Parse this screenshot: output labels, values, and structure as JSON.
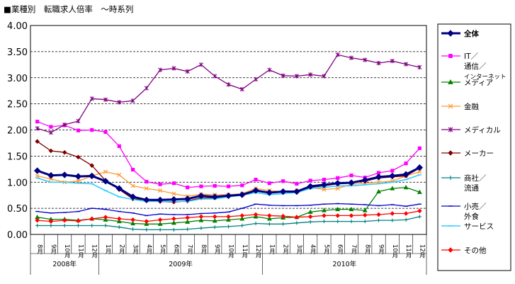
{
  "chart_data": {
    "type": "line",
    "title": "■業種別　転職求人倍率　～時系列",
    "xlabel": "",
    "ylabel": "",
    "ylim": [
      0,
      4
    ],
    "yticks": [
      "0.00",
      "0.50",
      "1.00",
      "1.50",
      "2.00",
      "2.50",
      "3.00",
      "3.50",
      "4.00"
    ],
    "grid": true,
    "legend_position": "right",
    "x_labels": [
      "8月",
      "9月",
      "10月",
      "11月",
      "12月",
      "1月",
      "2月",
      "3月",
      "4月",
      "5月",
      "6月",
      "7月",
      "8月",
      "9月",
      "10月",
      "11月",
      "12月",
      "1月",
      "2月",
      "3月",
      "4月",
      "5月",
      "6月",
      "7月",
      "8月",
      "9月",
      "10月",
      "11月",
      "12月"
    ],
    "year_labels": [
      {
        "label": "2008年",
        "start": 0,
        "end": 4
      },
      {
        "label": "2009年",
        "start": 5,
        "end": 16
      },
      {
        "label": "2010年",
        "start": 17,
        "end": 28
      }
    ],
    "series": [
      {
        "name": "全体",
        "color": "#000080",
        "marker": "diamond",
        "width": 3,
        "values": [
          1.22,
          1.13,
          1.14,
          1.11,
          1.12,
          1.02,
          0.88,
          0.72,
          0.66,
          0.66,
          0.67,
          0.68,
          0.74,
          0.72,
          0.74,
          0.76,
          0.84,
          0.8,
          0.82,
          0.82,
          0.92,
          0.95,
          0.98,
          0.99,
          1.04,
          1.1,
          1.12,
          1.15,
          1.28
        ]
      },
      {
        "name": "IT／通信／インターネット",
        "color": "#ff00ff",
        "marker": "square",
        "width": 1.3,
        "values": [
          2.16,
          2.06,
          2.09,
          1.99,
          2.0,
          1.96,
          1.69,
          1.24,
          1.01,
          0.96,
          0.98,
          0.9,
          0.92,
          0.93,
          0.92,
          0.94,
          1.05,
          0.98,
          1.02,
          0.97,
          1.03,
          1.05,
          1.08,
          1.13,
          1.09,
          1.18,
          1.22,
          1.36,
          1.65
        ]
      },
      {
        "name": "メディア",
        "color": "#008000",
        "marker": "triangle",
        "width": 1.3,
        "values": [
          0.33,
          0.29,
          0.29,
          0.27,
          0.3,
          0.28,
          0.25,
          0.21,
          0.2,
          0.2,
          0.22,
          0.24,
          0.27,
          0.26,
          0.28,
          0.3,
          0.34,
          0.3,
          0.32,
          0.33,
          0.43,
          0.46,
          0.48,
          0.48,
          0.46,
          0.82,
          0.88,
          0.9,
          0.81
        ]
      },
      {
        "name": "金融",
        "color": "#ff9933",
        "marker": "x",
        "width": 1.3,
        "values": [
          1.12,
          1.06,
          1.0,
          1.02,
          1.12,
          1.2,
          1.14,
          0.93,
          0.88,
          0.84,
          0.78,
          0.73,
          0.77,
          0.76,
          0.76,
          0.78,
          0.88,
          0.84,
          0.82,
          0.84,
          0.9,
          0.86,
          0.88,
          0.96,
          0.98,
          1.0,
          1.02,
          1.12,
          1.2
        ]
      },
      {
        "name": "メディカル",
        "color": "#800080",
        "marker": "star",
        "width": 1.3,
        "values": [
          2.03,
          1.95,
          2.1,
          2.17,
          2.6,
          2.58,
          2.53,
          2.56,
          2.8,
          3.15,
          3.18,
          3.12,
          3.25,
          3.03,
          2.87,
          2.78,
          2.97,
          3.15,
          3.04,
          3.03,
          3.06,
          3.03,
          3.44,
          3.38,
          3.34,
          3.28,
          3.32,
          3.26,
          3.2
        ]
      },
      {
        "name": "メーカー",
        "color": "#800000",
        "marker": "diamond",
        "width": 1.3,
        "values": [
          1.78,
          1.6,
          1.57,
          1.48,
          1.32,
          1.03,
          0.86,
          0.68,
          0.66,
          0.63,
          0.62,
          0.64,
          0.7,
          0.7,
          0.73,
          0.75,
          0.86,
          0.79,
          0.81,
          0.82,
          0.9,
          0.93,
          0.97,
          0.99,
          1.02,
          1.08,
          1.1,
          1.12,
          1.27
        ]
      },
      {
        "name": "商社／流通",
        "color": "#008080",
        "marker": "plus",
        "width": 1.3,
        "values": [
          0.17,
          0.17,
          0.17,
          0.17,
          0.17,
          0.17,
          0.14,
          0.1,
          0.09,
          0.09,
          0.09,
          0.1,
          0.12,
          0.14,
          0.15,
          0.17,
          0.21,
          0.2,
          0.2,
          0.22,
          0.24,
          0.25,
          0.25,
          0.25,
          0.25,
          0.27,
          0.27,
          0.28,
          0.34
        ]
      },
      {
        "name": "小売／外食",
        "color": "#0000cc",
        "marker": "dash",
        "width": 1.3,
        "values": [
          0.44,
          0.41,
          0.42,
          0.44,
          0.5,
          0.48,
          0.44,
          0.41,
          0.36,
          0.39,
          0.38,
          0.38,
          0.4,
          0.41,
          0.43,
          0.5,
          0.58,
          0.56,
          0.55,
          0.55,
          0.56,
          0.58,
          0.59,
          0.58,
          0.57,
          0.55,
          0.57,
          0.54,
          0.58
        ]
      },
      {
        "name": "サービス",
        "color": "#33ccff",
        "marker": "dash",
        "width": 1.6,
        "values": [
          1.08,
          1.0,
          1.0,
          0.98,
          0.97,
          0.84,
          0.72,
          0.67,
          0.63,
          0.63,
          0.63,
          0.63,
          0.68,
          0.68,
          0.72,
          0.75,
          0.8,
          0.76,
          0.78,
          0.8,
          0.88,
          0.9,
          0.93,
          0.93,
          0.95,
          0.97,
          1.0,
          1.05,
          1.14
        ]
      },
      {
        "name": "その他",
        "color": "#ff0000",
        "marker": "diamond",
        "width": 1.3,
        "values": [
          0.27,
          0.25,
          0.27,
          0.26,
          0.3,
          0.33,
          0.3,
          0.28,
          0.25,
          0.28,
          0.3,
          0.32,
          0.34,
          0.34,
          0.34,
          0.36,
          0.38,
          0.36,
          0.35,
          0.33,
          0.34,
          0.36,
          0.36,
          0.36,
          0.37,
          0.38,
          0.4,
          0.4,
          0.45
        ]
      }
    ]
  }
}
